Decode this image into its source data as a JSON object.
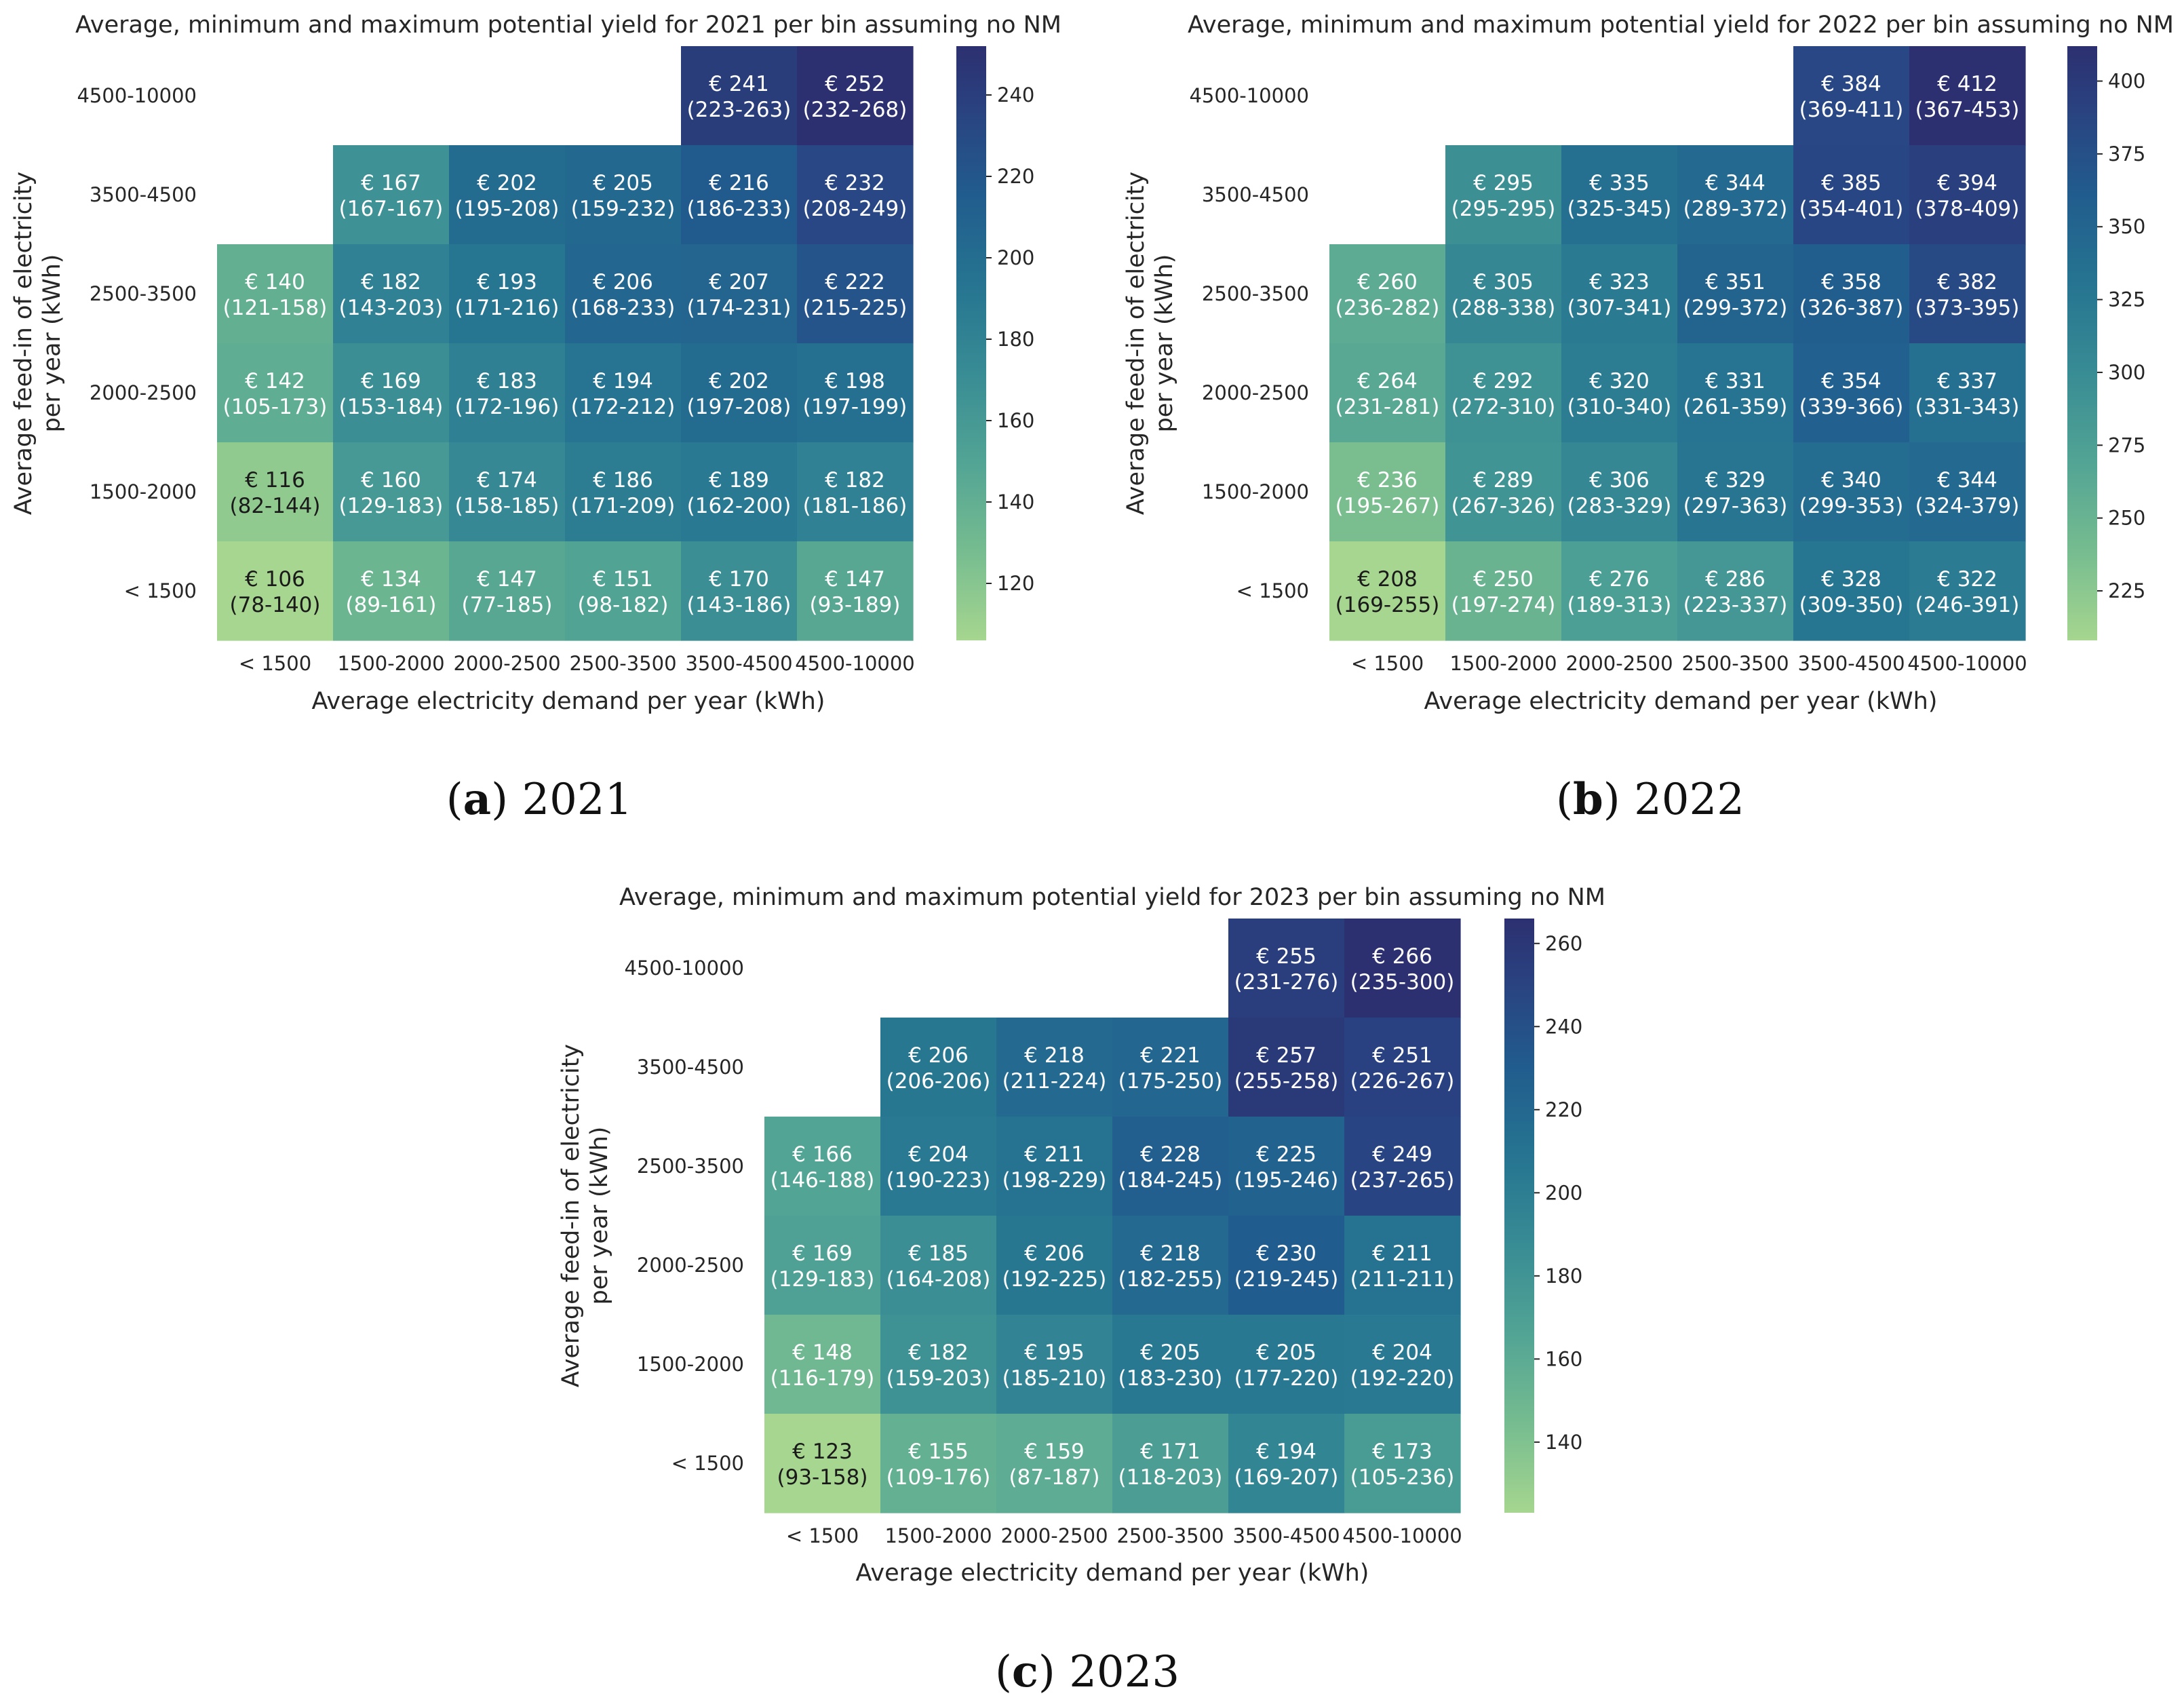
{
  "chart_data": [
    {
      "type": "heatmap",
      "title": "Average, minimum and maximum potential yield for 2021 per bin assuming no NM",
      "caption": {
        "letter": "a",
        "text": "2021"
      },
      "xlabel": "Average electricity demand per year (kWh)",
      "ylabel": [
        "Average feed-in of electricity",
        "per year (kWh)"
      ],
      "x_categories": [
        "< 1500",
        "1500-2000",
        "2000-2500",
        "2500-3500",
        "3500-4500",
        "4500-10000"
      ],
      "y_categories": [
        "4500-10000",
        "3500-4500",
        "2500-3500",
        "2000-2500",
        "1500-2000",
        "< 1500"
      ],
      "currency": "€",
      "avg": [
        [
          null,
          null,
          null,
          null,
          241,
          252
        ],
        [
          null,
          167,
          202,
          205,
          216,
          232
        ],
        [
          140,
          182,
          193,
          206,
          207,
          222
        ],
        [
          142,
          169,
          183,
          194,
          202,
          198
        ],
        [
          116,
          160,
          174,
          186,
          189,
          182
        ],
        [
          106,
          134,
          147,
          151,
          170,
          147
        ]
      ],
      "min": [
        [
          null,
          null,
          null,
          null,
          223,
          232
        ],
        [
          null,
          167,
          195,
          159,
          186,
          208
        ],
        [
          121,
          143,
          171,
          168,
          174,
          215
        ],
        [
          105,
          153,
          172,
          172,
          197,
          197
        ],
        [
          82,
          129,
          158,
          171,
          162,
          181
        ],
        [
          78,
          89,
          77,
          98,
          143,
          93
        ]
      ],
      "max": [
        [
          null,
          null,
          null,
          null,
          263,
          268
        ],
        [
          null,
          167,
          208,
          232,
          233,
          249
        ],
        [
          158,
          203,
          216,
          233,
          231,
          225
        ],
        [
          173,
          184,
          196,
          212,
          208,
          199
        ],
        [
          144,
          183,
          185,
          209,
          200,
          186
        ],
        [
          140,
          161,
          185,
          182,
          186,
          189
        ]
      ],
      "colorbar": {
        "range": [
          106,
          252
        ],
        "ticks": [
          120,
          140,
          160,
          180,
          200,
          220,
          240
        ]
      }
    },
    {
      "type": "heatmap",
      "title": "Average, minimum and maximum potential yield for 2022 per bin assuming no NM",
      "caption": {
        "letter": "b",
        "text": "2022"
      },
      "xlabel": "Average electricity demand per year (kWh)",
      "ylabel": [
        "Average feed-in of electricity",
        "per year (kWh)"
      ],
      "x_categories": [
        "< 1500",
        "1500-2000",
        "2000-2500",
        "2500-3500",
        "3500-4500",
        "4500-10000"
      ],
      "y_categories": [
        "4500-10000",
        "3500-4500",
        "2500-3500",
        "2000-2500",
        "1500-2000",
        "< 1500"
      ],
      "currency": "€",
      "avg": [
        [
          null,
          null,
          null,
          null,
          384,
          412
        ],
        [
          null,
          295,
          335,
          344,
          385,
          394
        ],
        [
          260,
          305,
          323,
          351,
          358,
          382
        ],
        [
          264,
          292,
          320,
          331,
          354,
          337
        ],
        [
          236,
          289,
          306,
          329,
          340,
          344
        ],
        [
          208,
          250,
          276,
          286,
          328,
          322
        ]
      ],
      "min": [
        [
          null,
          null,
          null,
          null,
          369,
          367
        ],
        [
          null,
          295,
          325,
          289,
          354,
          378
        ],
        [
          236,
          288,
          307,
          299,
          326,
          373
        ],
        [
          231,
          272,
          310,
          261,
          339,
          331
        ],
        [
          195,
          267,
          283,
          297,
          299,
          324
        ],
        [
          169,
          197,
          189,
          223,
          309,
          246
        ]
      ],
      "max": [
        [
          null,
          null,
          null,
          null,
          411,
          453
        ],
        [
          null,
          295,
          345,
          372,
          401,
          409
        ],
        [
          282,
          338,
          341,
          372,
          387,
          395
        ],
        [
          281,
          310,
          340,
          359,
          366,
          343
        ],
        [
          267,
          326,
          329,
          363,
          353,
          379
        ],
        [
          255,
          274,
          313,
          337,
          350,
          391
        ]
      ],
      "colorbar": {
        "range": [
          208,
          412
        ],
        "ticks": [
          225,
          250,
          275,
          300,
          325,
          350,
          375,
          400
        ]
      }
    },
    {
      "type": "heatmap",
      "title": "Average, minimum and maximum potential yield for 2023 per bin assuming no NM",
      "caption": {
        "letter": "c",
        "text": "2023"
      },
      "xlabel": "Average electricity demand per year (kWh)",
      "ylabel": [
        "Average feed-in of electricity",
        "per year (kWh)"
      ],
      "x_categories": [
        "< 1500",
        "1500-2000",
        "2000-2500",
        "2500-3500",
        "3500-4500",
        "4500-10000"
      ],
      "y_categories": [
        "4500-10000",
        "3500-4500",
        "2500-3500",
        "2000-2500",
        "1500-2000",
        "< 1500"
      ],
      "currency": "€",
      "avg": [
        [
          null,
          null,
          null,
          null,
          255,
          266
        ],
        [
          null,
          206,
          218,
          221,
          257,
          251
        ],
        [
          166,
          204,
          211,
          228,
          225,
          249
        ],
        [
          169,
          185,
          206,
          218,
          230,
          211
        ],
        [
          148,
          182,
          195,
          205,
          205,
          204
        ],
        [
          123,
          155,
          159,
          171,
          194,
          173
        ]
      ],
      "min": [
        [
          null,
          null,
          null,
          null,
          231,
          235
        ],
        [
          null,
          206,
          211,
          175,
          255,
          226
        ],
        [
          146,
          190,
          198,
          184,
          195,
          237
        ],
        [
          129,
          164,
          192,
          182,
          219,
          211
        ],
        [
          116,
          159,
          185,
          183,
          177,
          192
        ],
        [
          93,
          109,
          87,
          118,
          169,
          105
        ]
      ],
      "max": [
        [
          null,
          null,
          null,
          null,
          276,
          300
        ],
        [
          null,
          206,
          224,
          250,
          258,
          267
        ],
        [
          188,
          223,
          229,
          245,
          246,
          265
        ],
        [
          183,
          208,
          225,
          255,
          245,
          211
        ],
        [
          179,
          203,
          210,
          230,
          220,
          220
        ],
        [
          158,
          176,
          187,
          203,
          207,
          236
        ]
      ],
      "colorbar": {
        "range": [
          123,
          266
        ],
        "ticks": [
          140,
          160,
          180,
          200,
          220,
          240,
          260
        ]
      }
    }
  ]
}
